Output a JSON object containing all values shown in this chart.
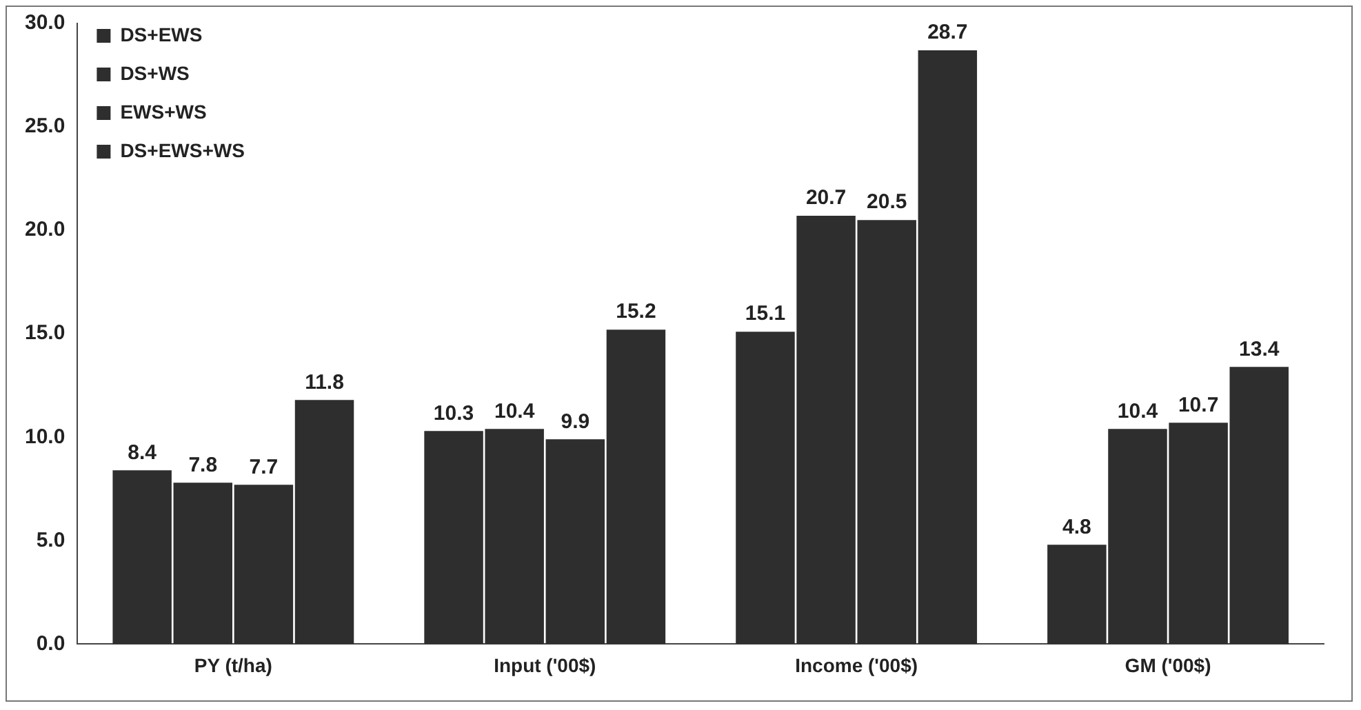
{
  "chart_data": {
    "type": "bar",
    "categories": [
      "PY (t/ha)",
      "Input ('00$)",
      "Income ('00$)",
      "GM ('00$)"
    ],
    "series": [
      {
        "name": "DS+EWS",
        "color": "#2e2e2e",
        "values": [
          8.4,
          10.3,
          15.1,
          4.8
        ]
      },
      {
        "name": "DS+WS",
        "color": "#2e2e2e",
        "values": [
          7.8,
          10.4,
          20.7,
          10.4
        ]
      },
      {
        "name": "EWS+WS",
        "color": "#2e2e2e",
        "values": [
          7.7,
          9.9,
          20.5,
          10.7
        ]
      },
      {
        "name": "DS+EWS+WS",
        "color": "#2e2e2e",
        "values": [
          11.8,
          15.2,
          28.7,
          13.4
        ]
      }
    ],
    "ylim": [
      0,
      30
    ],
    "yticks": [
      {
        "value": 0,
        "label": "0.0"
      },
      {
        "value": 5,
        "label": "5.0"
      },
      {
        "value": 10,
        "label": "10.0"
      },
      {
        "value": 15,
        "label": "15.0"
      },
      {
        "value": 20,
        "label": "20.0"
      },
      {
        "value": 25,
        "label": "25.0"
      },
      {
        "value": 30,
        "label": "30.0"
      }
    ],
    "grid": false,
    "legend": "top left",
    "data_labels": true
  }
}
